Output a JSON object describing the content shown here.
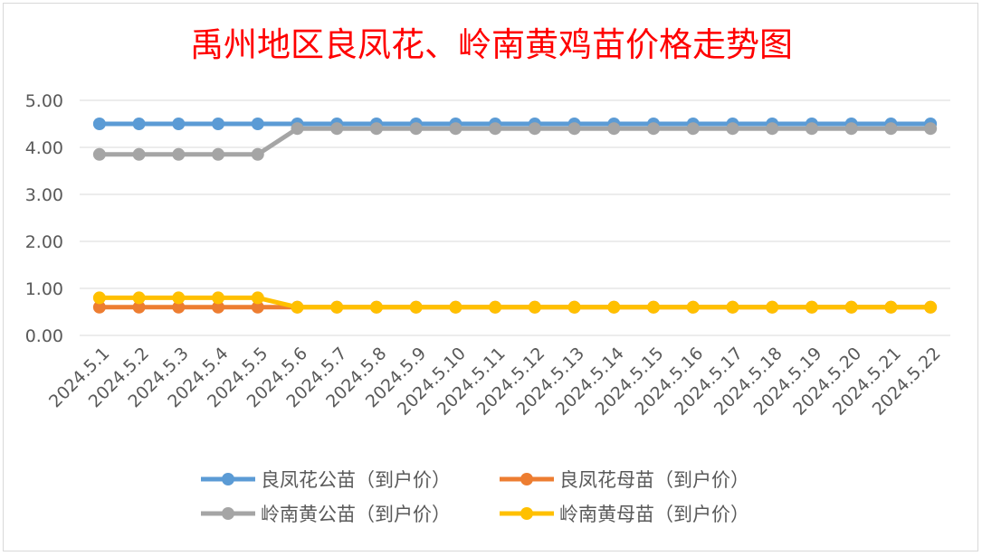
{
  "chart_data": {
    "type": "line",
    "title": "禹州地区良凤花、岭南黄鸡苗价格走势图",
    "categories": [
      "2024.5.1",
      "2024.5.2",
      "2024.5.3",
      "2024.5.4",
      "2024.5.5",
      "2024.5.6",
      "2024.5.7",
      "2024.5.8",
      "2024.5.9",
      "2024.5.10",
      "2024.5.11",
      "2024.5.12",
      "2024.5.13",
      "2024.5.14",
      "2024.5.15",
      "2024.5.16",
      "2024.5.17",
      "2024.5.18",
      "2024.5.19",
      "2024.5.20",
      "2024.5.21",
      "2024.5.22"
    ],
    "yticks": [
      "0.00",
      "1.00",
      "2.00",
      "3.00",
      "4.00",
      "5.00"
    ],
    "ylim": [
      0,
      5
    ],
    "grid": true,
    "legend_position": "bottom",
    "series": [
      {
        "name": "良凤花公苗（到户价）",
        "color": "#5b9bd5",
        "values": [
          4.5,
          4.5,
          4.5,
          4.5,
          4.5,
          4.5,
          4.5,
          4.5,
          4.5,
          4.5,
          4.5,
          4.5,
          4.5,
          4.5,
          4.5,
          4.5,
          4.5,
          4.5,
          4.5,
          4.5,
          4.5,
          4.5
        ]
      },
      {
        "name": "良凤花母苗（到户价）",
        "color": "#ed7d31",
        "values": [
          0.6,
          0.6,
          0.6,
          0.6,
          0.6,
          0.6,
          0.6,
          0.6,
          0.6,
          0.6,
          0.6,
          0.6,
          0.6,
          0.6,
          0.6,
          0.6,
          0.6,
          0.6,
          0.6,
          0.6,
          0.6,
          0.6
        ]
      },
      {
        "name": "岭南黄公苗（到户价）",
        "color": "#a5a5a5",
        "values": [
          3.85,
          3.85,
          3.85,
          3.85,
          3.85,
          4.4,
          4.4,
          4.4,
          4.4,
          4.4,
          4.4,
          4.4,
          4.4,
          4.4,
          4.4,
          4.4,
          4.4,
          4.4,
          4.4,
          4.4,
          4.4,
          4.4
        ]
      },
      {
        "name": "岭南黄母苗（到户价）",
        "color": "#ffc000",
        "values": [
          0.8,
          0.8,
          0.8,
          0.8,
          0.8,
          0.6,
          0.6,
          0.6,
          0.6,
          0.6,
          0.6,
          0.6,
          0.6,
          0.6,
          0.6,
          0.6,
          0.6,
          0.6,
          0.6,
          0.6,
          0.6,
          0.6
        ]
      }
    ]
  }
}
